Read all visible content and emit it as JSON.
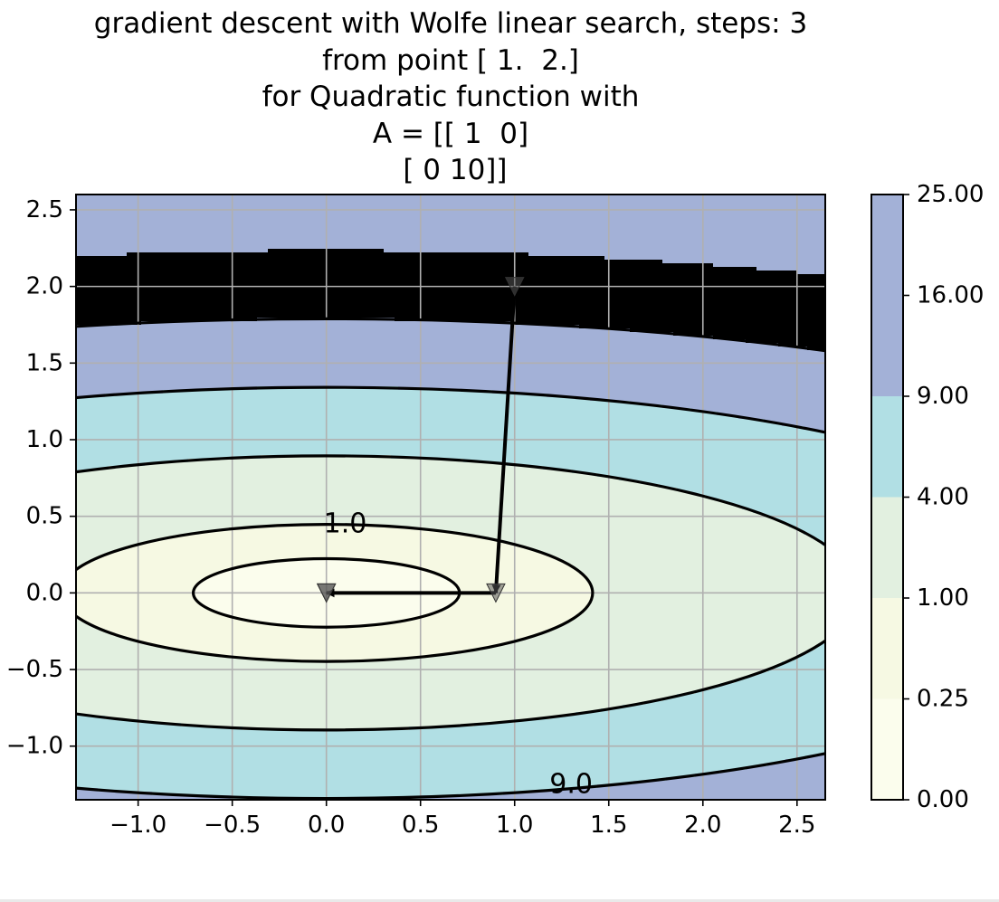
{
  "chart_data": {
    "type": "contour",
    "title_lines": [
      "gradient descent with Wolfe linear search, steps: 3",
      "from point [ 1.  2.]",
      "for Quadratic function with",
      "A = [[ 1  0]",
      " [ 0 10]]"
    ],
    "xlim": [
      -1.33,
      2.65
    ],
    "ylim": [
      -1.35,
      2.6
    ],
    "x_ticks": [
      -1.0,
      -0.5,
      0.0,
      0.5,
      1.0,
      1.5,
      2.0,
      2.5
    ],
    "x_tick_labels": [
      "−1.0",
      "−0.5",
      "0.0",
      "0.5",
      "1.0",
      "1.5",
      "2.0",
      "2.5"
    ],
    "y_ticks": [
      2.5,
      2.0,
      1.5,
      1.0,
      0.5,
      0.0,
      -0.5,
      -1.0
    ],
    "y_tick_labels": [
      "2.5",
      "2.0",
      "1.5",
      "1.0",
      "0.5",
      "0.0",
      "−0.5",
      "−1.0"
    ],
    "grid": true,
    "function": {
      "A": [
        [
          1,
          0
        ],
        [
          0,
          10
        ]
      ]
    },
    "filled_levels": [
      0.0,
      0.25,
      1.0,
      4.0,
      9.0,
      16.0,
      25.0
    ],
    "filled_colors": [
      "#fbfded",
      "#f6f9e3",
      "#e2f0e0",
      "#b1dfe4",
      "#a3b1d7"
    ],
    "contour_lines": [
      0.25,
      1.0,
      4.0,
      9.0,
      16.0
    ],
    "contour_labels": [
      {
        "text": "1.0",
        "x": 0.1,
        "y": 0.45
      },
      {
        "text": "9.0",
        "x": 1.3,
        "y": -1.25
      }
    ],
    "path": [
      [
        1.0,
        2.0
      ],
      [
        0.9,
        0.0
      ],
      [
        0.0,
        0.0
      ],
      [
        0.0,
        0.0
      ]
    ],
    "colorbar": {
      "boundaries": [
        0.0,
        0.25,
        1.0,
        4.0,
        9.0,
        16.0,
        25.0
      ],
      "tick_labels": [
        "0.00",
        "0.25",
        "1.00",
        "4.00",
        "9.00",
        "16.00",
        "25.00"
      ]
    }
  }
}
